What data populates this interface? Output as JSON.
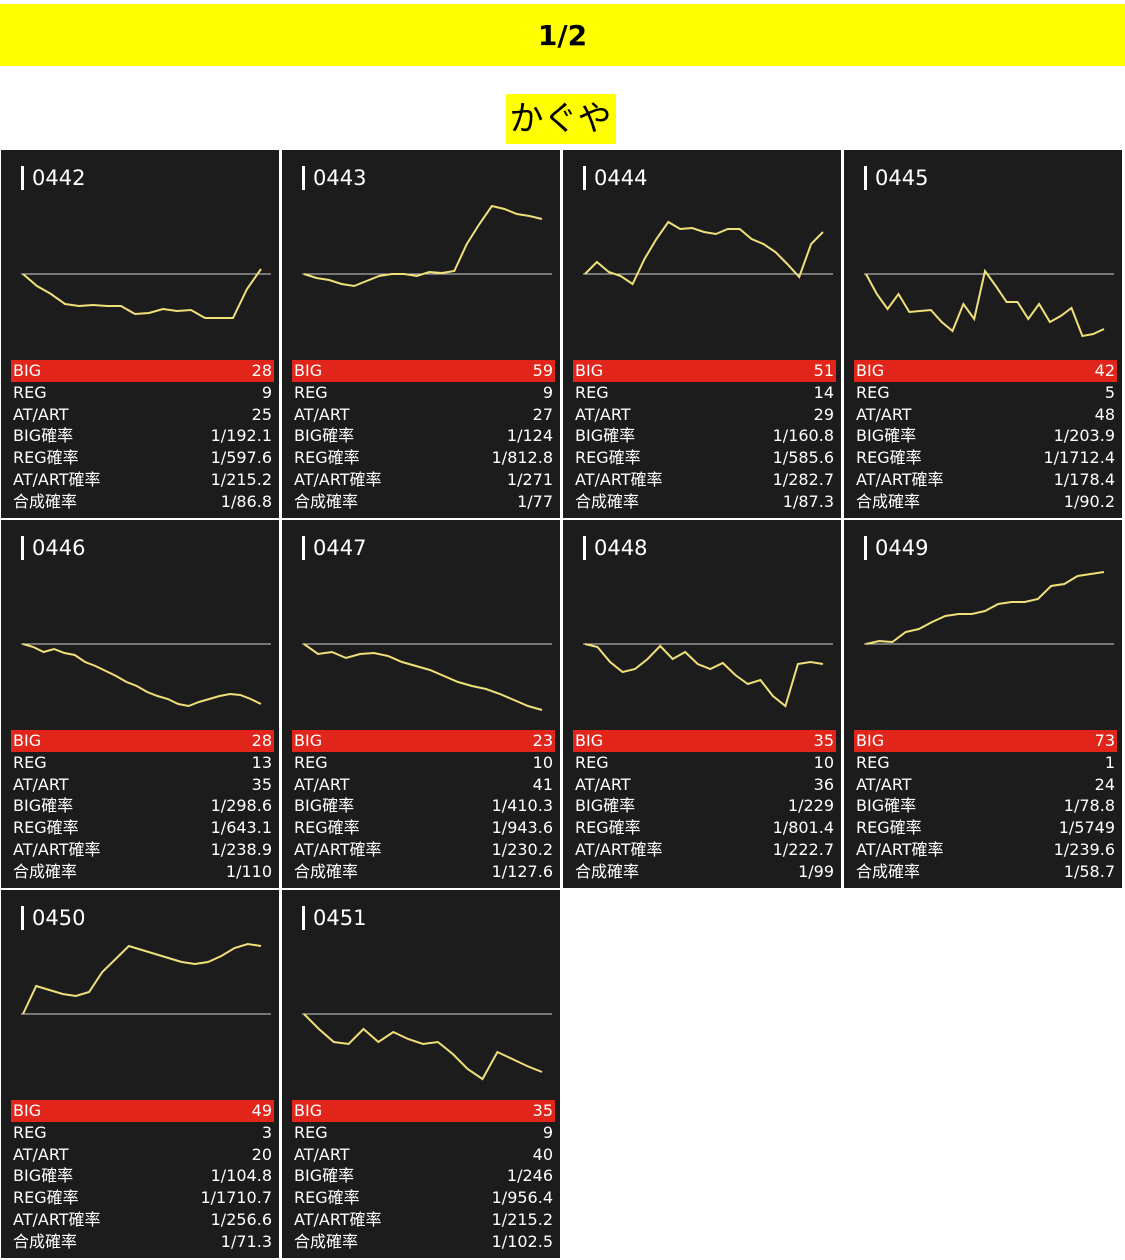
{
  "page": {
    "title": "1/2",
    "store_name": "かぐや"
  },
  "colors": {
    "header_bg": "#ffff00",
    "card_bg": "#1c1c1c",
    "big_row": "#e1251b",
    "line": "#f0e07a",
    "baseline": "#cfcfcf"
  },
  "labels": {
    "big": "BIG",
    "reg": "REG",
    "at": "AT/ART",
    "big_rate": "BIG確率",
    "reg_rate": "REG確率",
    "at_rate": "AT/ART確率",
    "total_rate": "合成確率"
  },
  "machines": [
    {
      "id": "0442",
      "big": "28",
      "reg": "9",
      "at": "25",
      "big_rate": "1/192.1",
      "reg_rate": "1/597.6",
      "at_rate": "1/215.2",
      "total_rate": "1/86.8",
      "trend": [
        0,
        -12,
        -20,
        -30,
        -32,
        -31,
        -32,
        -32,
        -40,
        -39,
        -35,
        -37,
        -36,
        -44,
        -44,
        -44,
        -15,
        5
      ]
    },
    {
      "id": "0443",
      "big": "59",
      "reg": "9",
      "at": "27",
      "big_rate": "1/124",
      "reg_rate": "1/812.8",
      "at_rate": "1/271",
      "total_rate": "1/77",
      "trend": [
        0,
        -4,
        -6,
        -10,
        -12,
        -7,
        -2,
        0,
        0,
        -2,
        2,
        1,
        3,
        30,
        50,
        68,
        65,
        60,
        58,
        55
      ]
    },
    {
      "id": "0444",
      "big": "51",
      "reg": "14",
      "at": "29",
      "big_rate": "1/160.8",
      "reg_rate": "1/585.6",
      "at_rate": "1/282.7",
      "total_rate": "1/87.3",
      "trend": [
        0,
        12,
        2,
        -2,
        -10,
        15,
        35,
        52,
        45,
        46,
        42,
        40,
        45,
        45,
        35,
        30,
        22,
        10,
        -3,
        30,
        42
      ]
    },
    {
      "id": "0445",
      "big": "42",
      "reg": "5",
      "at": "48",
      "big_rate": "1/203.9",
      "reg_rate": "1/1712.4",
      "at_rate": "1/178.4",
      "total_rate": "1/90.2",
      "trend": [
        0,
        -20,
        -35,
        -20,
        -38,
        -37,
        -36,
        -48,
        -57,
        -30,
        -45,
        3,
        -12,
        -28,
        -28,
        -45,
        -30,
        -48,
        -42,
        -34,
        -62,
        -60,
        -55
      ]
    },
    {
      "id": "0446",
      "big": "28",
      "reg": "13",
      "at": "35",
      "big_rate": "1/298.6",
      "reg_rate": "1/643.1",
      "at_rate": "1/238.9",
      "total_rate": "1/110",
      "trend": [
        0,
        -3,
        -8,
        -5,
        -9,
        -11,
        -18,
        -22,
        -27,
        -32,
        -38,
        -42,
        -48,
        -52,
        -55,
        -60,
        -62,
        -58,
        -55,
        -52,
        -50,
        -51,
        -55,
        -60
      ]
    },
    {
      "id": "0447",
      "big": "23",
      "reg": "10",
      "at": "41",
      "big_rate": "1/410.3",
      "reg_rate": "1/943.6",
      "at_rate": "1/230.2",
      "total_rate": "1/127.6",
      "trend": [
        0,
        -10,
        -8,
        -14,
        -10,
        -9,
        -12,
        -18,
        -22,
        -26,
        -32,
        -38,
        -42,
        -45,
        -50,
        -56,
        -62,
        -66
      ]
    },
    {
      "id": "0448",
      "big": "35",
      "reg": "10",
      "at": "36",
      "big_rate": "1/229",
      "reg_rate": "1/801.4",
      "at_rate": "1/222.7",
      "total_rate": "1/99",
      "trend": [
        0,
        -3,
        -18,
        -28,
        -25,
        -15,
        -2,
        -15,
        -8,
        -20,
        -25,
        -19,
        -31,
        -40,
        -36,
        -52,
        -62,
        -20,
        -18,
        -20
      ]
    },
    {
      "id": "0449",
      "big": "73",
      "reg": "1",
      "at": "24",
      "big_rate": "1/78.8",
      "reg_rate": "1/5749",
      "at_rate": "1/239.6",
      "total_rate": "1/58.7",
      "trend": [
        0,
        3,
        2,
        12,
        15,
        22,
        28,
        30,
        30,
        33,
        40,
        42,
        42,
        45,
        58,
        60,
        68,
        70,
        72
      ]
    },
    {
      "id": "0450",
      "big": "49",
      "reg": "3",
      "at": "20",
      "big_rate": "1/104.8",
      "reg_rate": "1/1710.7",
      "at_rate": "1/256.6",
      "total_rate": "1/71.3",
      "trend": [
        0,
        28,
        24,
        20,
        18,
        22,
        42,
        55,
        68,
        64,
        60,
        56,
        52,
        50,
        52,
        58,
        66,
        70,
        68
      ]
    },
    {
      "id": "0451",
      "big": "35",
      "reg": "9",
      "at": "40",
      "big_rate": "1/246",
      "reg_rate": "1/956.4",
      "at_rate": "1/215.2",
      "total_rate": "1/102.5",
      "trend": [
        0,
        -15,
        -28,
        -30,
        -15,
        -28,
        -18,
        -25,
        -30,
        -28,
        -40,
        -55,
        -65,
        -38,
        -45,
        -52,
        -58
      ]
    }
  ]
}
